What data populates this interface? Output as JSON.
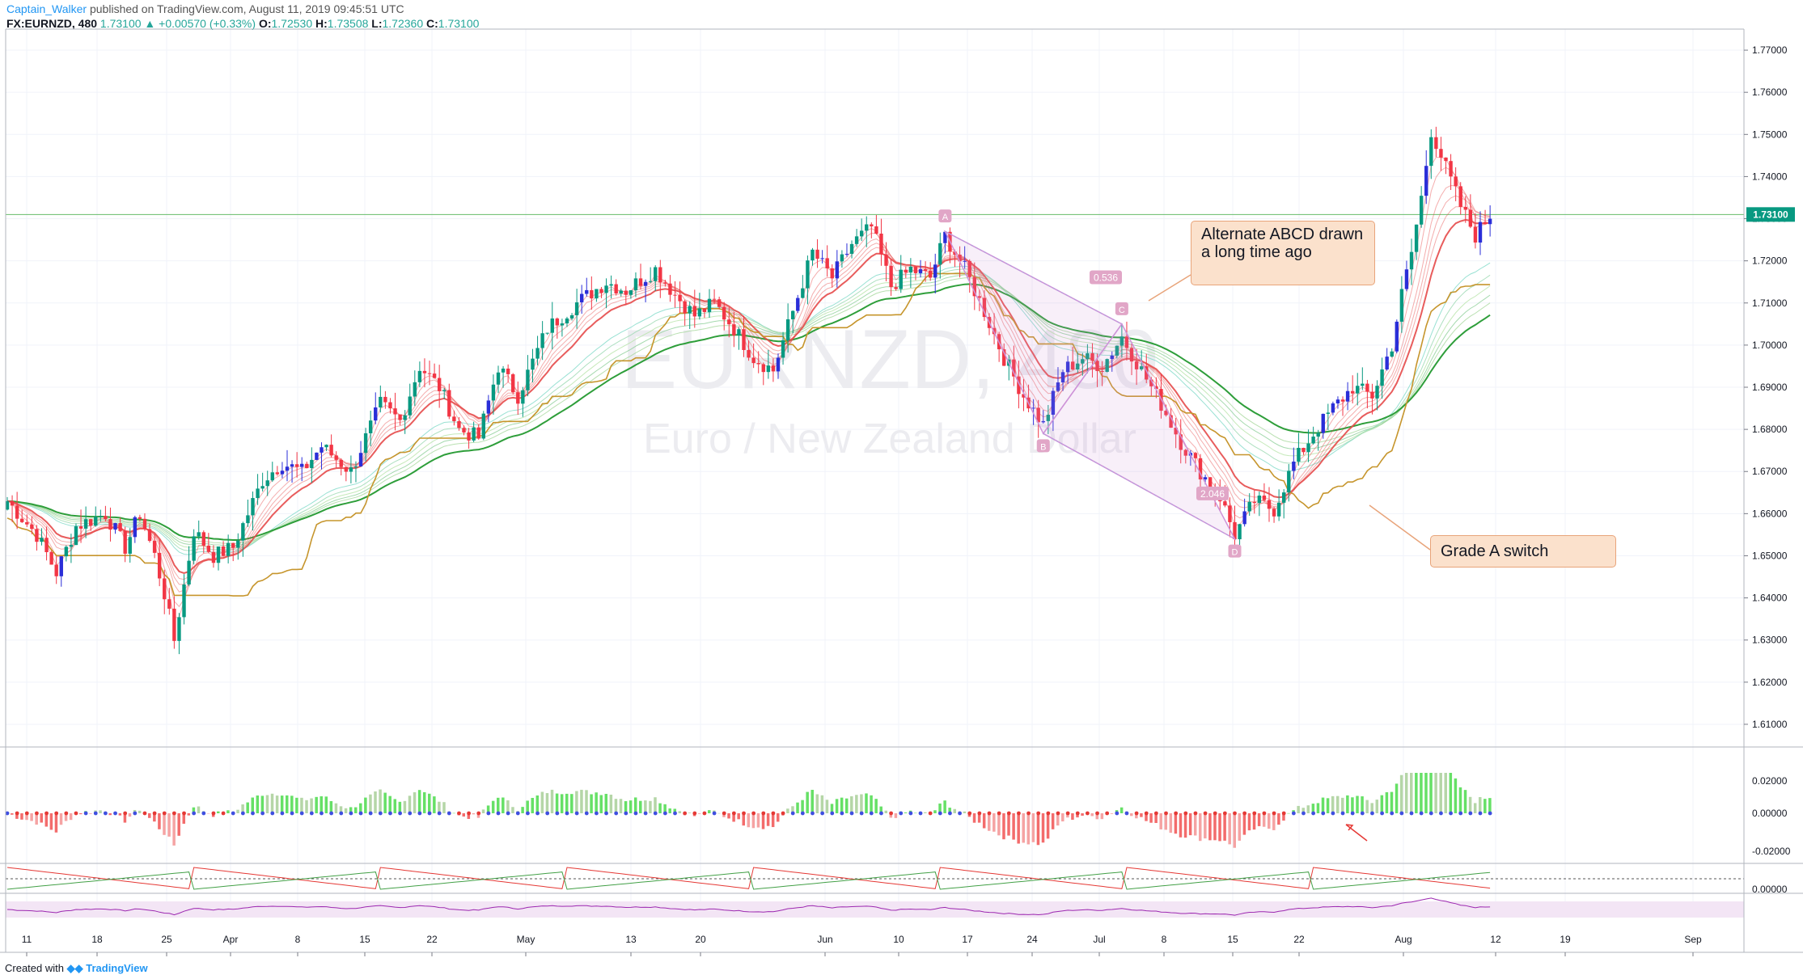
{
  "header": {
    "author": "Captain_Walker",
    "published": "published on TradingView.com, August 11, 2019 09:45:51 UTC",
    "symbol": "FX:EURNZD, 480",
    "last": "1.73100",
    "change_arrow": "▲",
    "change": "+0.00570 (+0.33%)",
    "o_label": "O:",
    "o": "1.72530",
    "h_label": "H:",
    "h": "1.73508",
    "l_label": "L:",
    "l": "1.72360",
    "c_label": "C:",
    "c": "1.73100"
  },
  "watermark": {
    "symbol": "EURNZD, 480",
    "name": "Euro / New Zealand Dollar"
  },
  "annotations": {
    "abcd_callout": "Alternate ABCD drawn a long time ago",
    "switch_callout": "Grade A switch",
    "point_a": "A",
    "point_b": "B",
    "point_c": "C",
    "point_d": "D",
    "ratio_bc": "0.536",
    "ratio_cd": "2.046"
  },
  "footer": {
    "created_with": "Created with",
    "brand": "TradingView"
  },
  "colors": {
    "bull": "#089981",
    "bear": "#f23645",
    "bull_blue": "#2a2ed8",
    "guppy_fast": "#e64a4a",
    "guppy_slow_green": "#2e9e3a",
    "kijun": "#c6952c",
    "price_label_bg": "#089981",
    "histogram_pos": "#4caf50",
    "histogram_neg": "#f44336",
    "rsi": "#9c27b0"
  },
  "chart_data": {
    "type": "candlestick",
    "symbol": "FX:EURNZD",
    "interval": "480",
    "price_axis_ticks": [
      "1.77000",
      "1.76000",
      "1.75000",
      "1.74000",
      "1.73000",
      "1.72000",
      "1.71000",
      "1.70000",
      "1.69000",
      "1.68000",
      "1.67000",
      "1.66000",
      "1.65000",
      "1.64000",
      "1.63000",
      "1.62000",
      "1.61000"
    ],
    "last_price_label": "1.73100",
    "ylim": [
      1.605,
      1.775
    ],
    "time_axis_ticks": [
      "11",
      "18",
      "25",
      "Apr",
      "8",
      "15",
      "22",
      "May",
      "13",
      "20",
      "Jun",
      "10",
      "17",
      "24",
      "Jul",
      "8",
      "15",
      "22",
      "Aug",
      "12",
      "19",
      "Sep"
    ],
    "close_path": [
      [
        0,
        1.663
      ],
      [
        6,
        1.655
      ],
      [
        10,
        1.646
      ],
      [
        14,
        1.657
      ],
      [
        20,
        1.66
      ],
      [
        24,
        1.652
      ],
      [
        27,
        1.66
      ],
      [
        30,
        1.65
      ],
      [
        32,
        1.641
      ],
      [
        34,
        1.63
      ],
      [
        38,
        1.656
      ],
      [
        42,
        1.65
      ],
      [
        46,
        1.652
      ],
      [
        52,
        1.668
      ],
      [
        56,
        1.672
      ],
      [
        60,
        1.67
      ],
      [
        64,
        1.676
      ],
      [
        70,
        1.67
      ],
      [
        76,
        1.686
      ],
      [
        80,
        1.682
      ],
      [
        84,
        1.695
      ],
      [
        88,
        1.69
      ],
      [
        92,
        1.68
      ],
      [
        96,
        1.678
      ],
      [
        100,
        1.695
      ],
      [
        104,
        1.688
      ],
      [
        110,
        1.704
      ],
      [
        116,
        1.71
      ],
      [
        122,
        1.715
      ],
      [
        126,
        1.713
      ],
      [
        132,
        1.718
      ],
      [
        136,
        1.712
      ],
      [
        140,
        1.707
      ],
      [
        144,
        1.71
      ],
      [
        148,
        1.704
      ],
      [
        152,
        1.697
      ],
      [
        156,
        1.694
      ],
      [
        160,
        1.708
      ],
      [
        164,
        1.722
      ],
      [
        168,
        1.716
      ],
      [
        172,
        1.724
      ],
      [
        176,
        1.728
      ],
      [
        180,
        1.714
      ],
      [
        184,
        1.718
      ],
      [
        188,
        1.716
      ],
      [
        191,
        1.726
      ],
      [
        195,
        1.718
      ],
      [
        199,
        1.708
      ],
      [
        203,
        1.697
      ],
      [
        207,
        1.688
      ],
      [
        211,
        1.681
      ],
      [
        215,
        1.694
      ],
      [
        219,
        1.697
      ],
      [
        223,
        1.695
      ],
      [
        227,
        1.702
      ],
      [
        231,
        1.694
      ],
      [
        235,
        1.686
      ],
      [
        239,
        1.677
      ],
      [
        243,
        1.67
      ],
      [
        247,
        1.664
      ],
      [
        250,
        1.655
      ],
      [
        254,
        1.663
      ],
      [
        258,
        1.661
      ],
      [
        262,
        1.672
      ],
      [
        266,
        1.679
      ],
      [
        270,
        1.685
      ],
      [
        274,
        1.69
      ],
      [
        278,
        1.688
      ],
      [
        282,
        1.7
      ],
      [
        284,
        1.712
      ],
      [
        286,
        1.722
      ],
      [
        288,
        1.735
      ],
      [
        290,
        1.751
      ],
      [
        293,
        1.742
      ],
      [
        296,
        1.733
      ],
      [
        299,
        1.726
      ],
      [
        302,
        1.731
      ]
    ],
    "abcd": [
      {
        "point": "A",
        "bar": 191,
        "price": 1.727
      },
      {
        "point": "B",
        "bar": 211,
        "price": 1.679
      },
      {
        "point": "C",
        "bar": 227,
        "price": 1.705
      },
      {
        "point": "D",
        "bar": 250,
        "price": 1.654
      }
    ],
    "oscillator_ticks": [
      "0.02000",
      "0.00000",
      "-0.02000"
    ],
    "stoch_ticks": [
      "0.00000"
    ]
  }
}
